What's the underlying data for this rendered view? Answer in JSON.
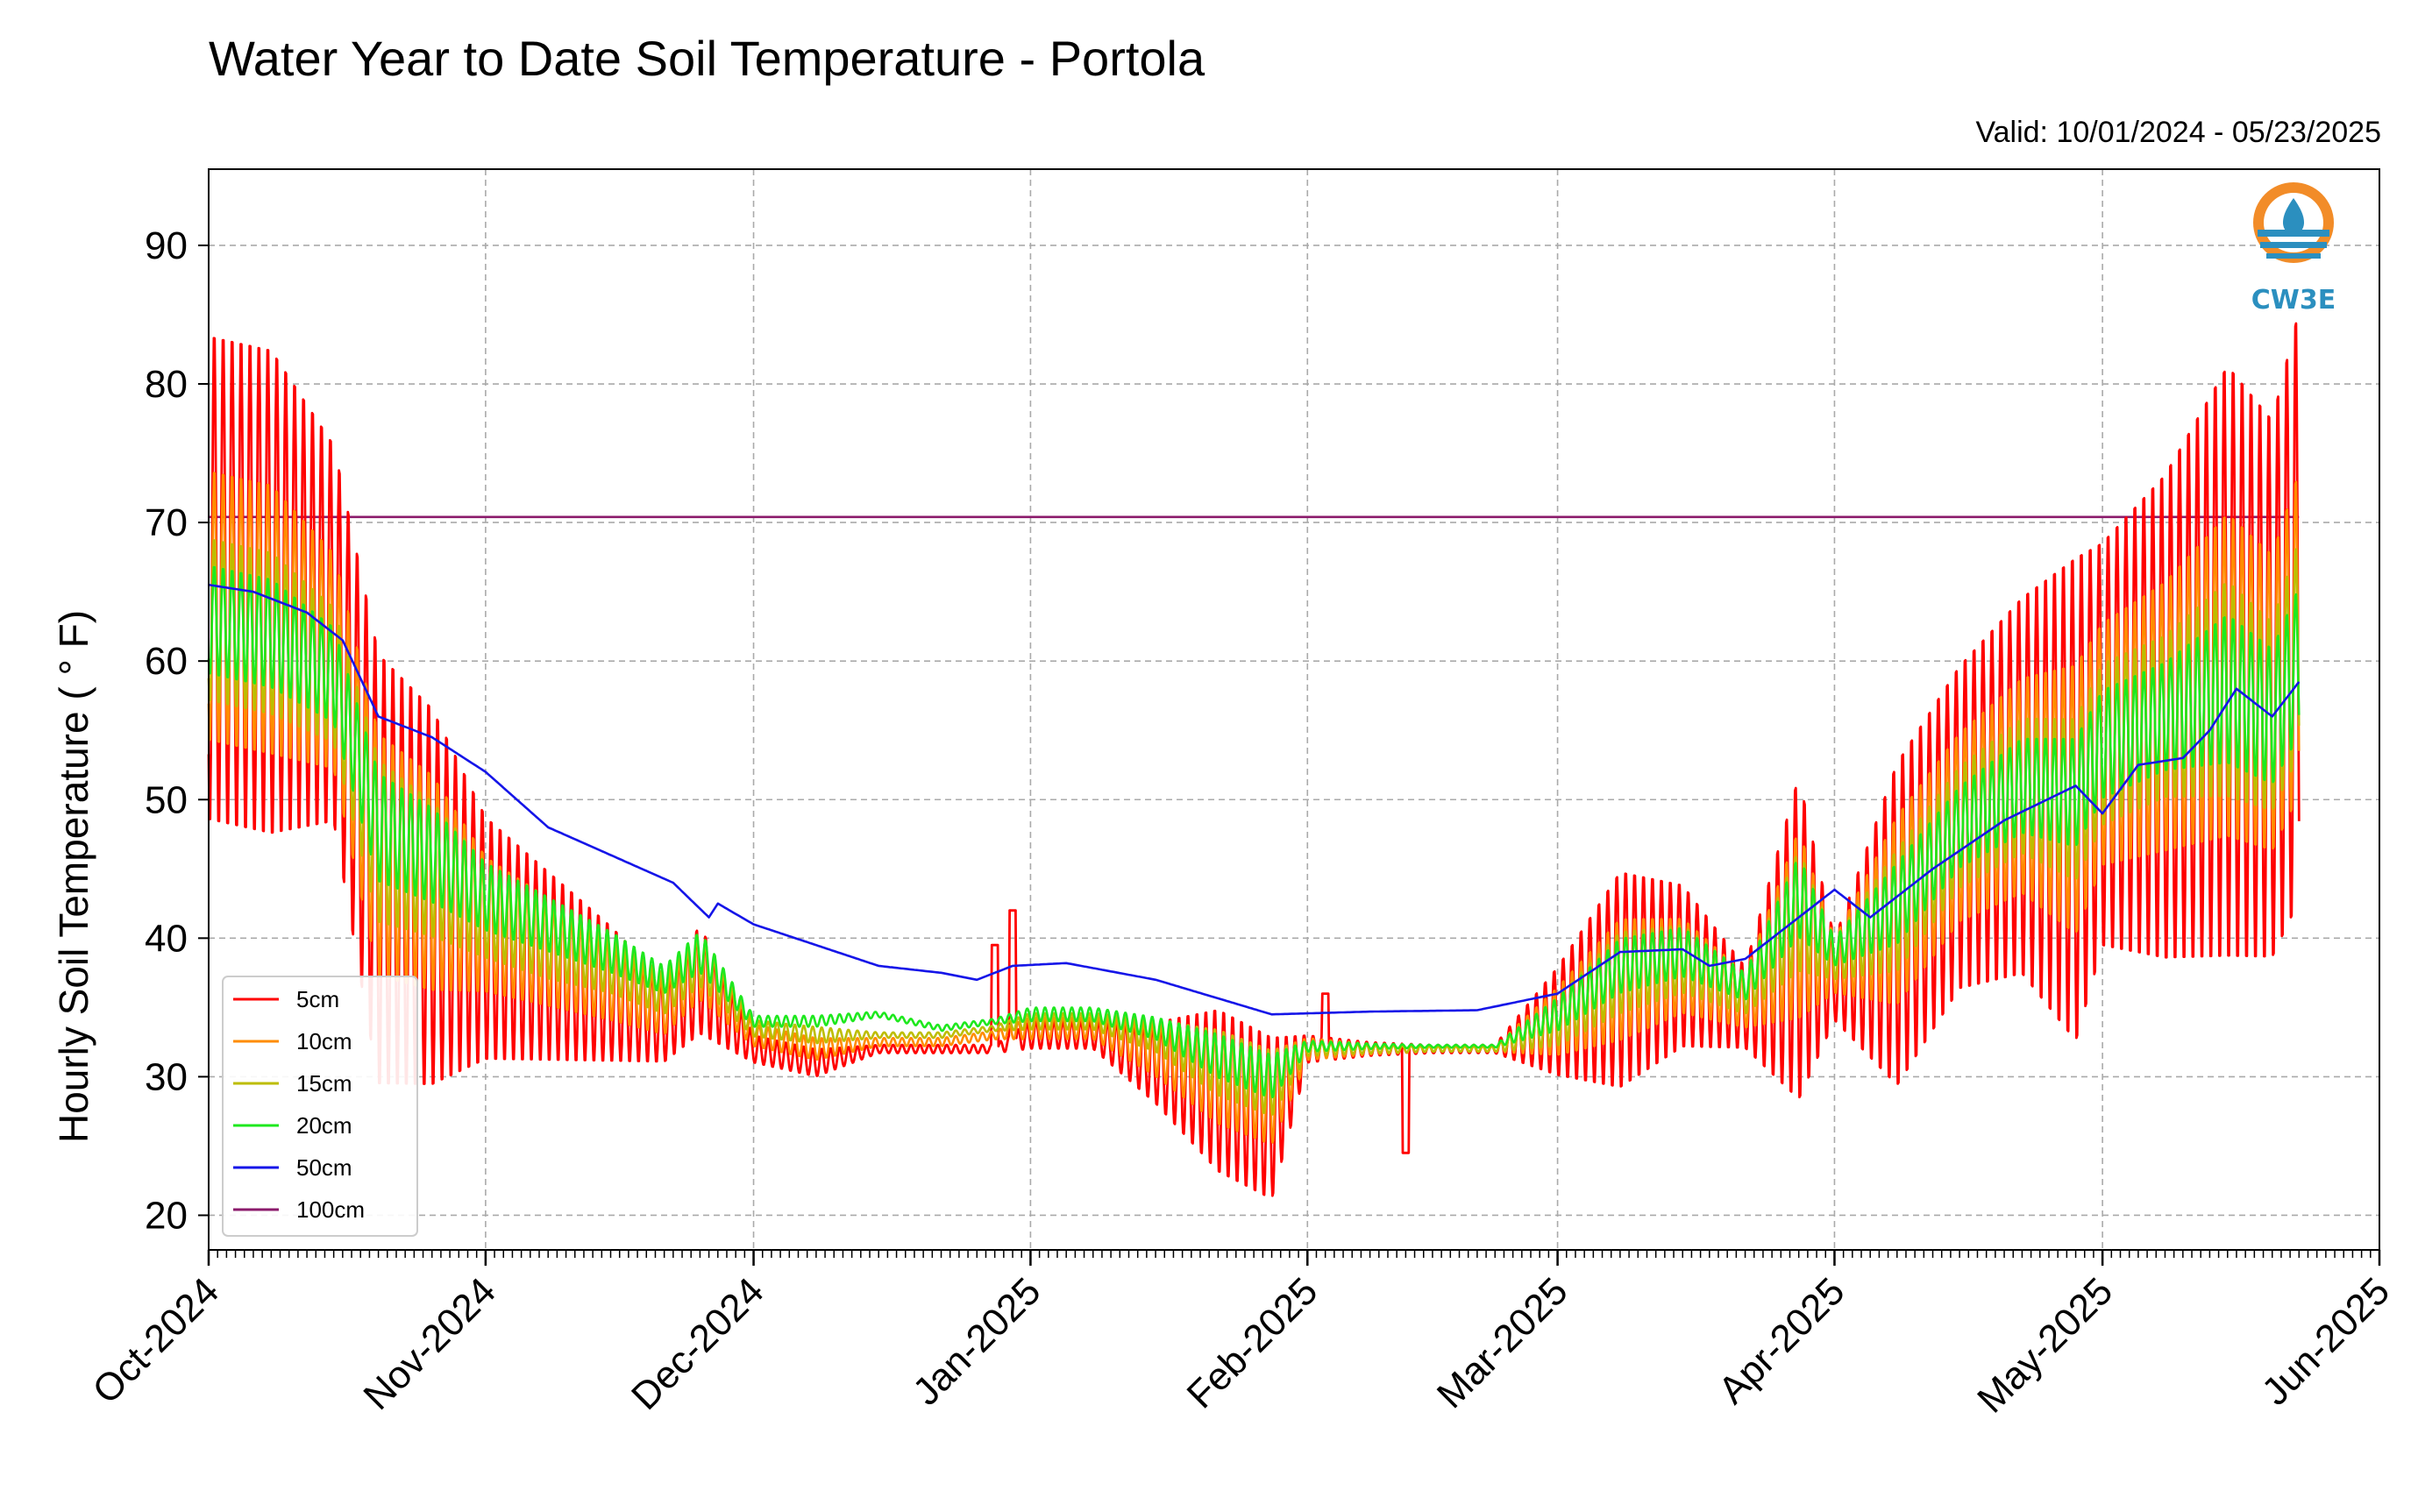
{
  "chart_data": {
    "type": "line",
    "title": "Water Year to Date Soil Temperature - Portola",
    "subtitle": "Valid: 10/01/2024 - 05/23/2025",
    "ylabel": "Hourly Soil Temperature ( ° F)",
    "xlabel": "",
    "ylim": [
      17.5,
      95.5
    ],
    "xlim_days": [
      0,
      243
    ],
    "yticks": [
      20,
      30,
      40,
      50,
      60,
      70,
      80,
      90
    ],
    "xticks": [
      {
        "label": "Oct-2024",
        "day": 0
      },
      {
        "label": "Nov-2024",
        "day": 31
      },
      {
        "label": "Dec-2024",
        "day": 61
      },
      {
        "label": "Jan-2025",
        "day": 92
      },
      {
        "label": "Feb-2025",
        "day": 123
      },
      {
        "label": "Mar-2025",
        "day": 151
      },
      {
        "label": "Apr-2025",
        "day": 182
      },
      {
        "label": "May-2025",
        "day": 212
      },
      {
        "label": "Jun-2025",
        "day": 243
      }
    ],
    "grid": true,
    "legend_position": "lower-left",
    "logo_text": "CW3E",
    "series": [
      {
        "name": "5cm",
        "color": "#ff0000",
        "x_dates": [
          "2024-10-01",
          "2024-10-08",
          "2024-10-15",
          "2024-10-20",
          "2024-10-26",
          "2024-11-01",
          "2024-11-08",
          "2024-11-15",
          "2024-11-21",
          "2024-11-25",
          "2024-12-01",
          "2024-12-08",
          "2024-12-15",
          "2024-12-22",
          "2024-12-28",
          "2025-01-01",
          "2025-01-08",
          "2025-01-15",
          "2025-01-22",
          "2025-01-28",
          "2025-02-01",
          "2025-02-08",
          "2025-02-15",
          "2025-02-22",
          "2025-03-01",
          "2025-03-08",
          "2025-03-15",
          "2025-03-22",
          "2025-03-28",
          "2025-04-01",
          "2025-04-08",
          "2025-04-15",
          "2025-04-22",
          "2025-04-28",
          "2025-05-01",
          "2025-05-08",
          "2025-05-15",
          "2025-05-20",
          "2025-05-23"
        ],
        "mean": [
          66,
          65,
          62,
          45,
          43,
          40,
          38,
          36,
          34,
          37,
          32,
          31,
          32,
          32,
          32,
          33,
          33,
          31,
          29,
          27,
          32,
          32,
          32,
          32,
          34,
          37,
          38,
          35,
          40,
          37,
          41,
          48,
          51,
          50,
          54,
          56,
          60,
          58,
          64
        ],
        "amplitude": [
          18,
          18,
          14,
          16,
          14,
          9,
          7,
          5,
          3,
          4,
          1,
          1,
          0.3,
          0.3,
          0.3,
          1,
          1,
          3,
          6,
          6,
          1,
          0.5,
          0.3,
          0.3,
          4,
          8,
          6,
          3,
          12,
          3,
          12,
          12,
          14,
          18,
          15,
          18,
          22,
          20,
          22
        ]
      },
      {
        "name": "10cm",
        "color": "#ff8c00",
        "x_dates": [
          "2024-10-01",
          "2024-10-08",
          "2024-10-15",
          "2024-10-20",
          "2024-10-26",
          "2024-11-01",
          "2024-11-08",
          "2024-11-15",
          "2024-11-21",
          "2024-11-25",
          "2024-12-01",
          "2024-12-08",
          "2024-12-15",
          "2024-12-22",
          "2024-12-28",
          "2025-01-01",
          "2025-01-08",
          "2025-01-15",
          "2025-01-22",
          "2025-01-28",
          "2025-02-01",
          "2025-02-08",
          "2025-02-15",
          "2025-02-22",
          "2025-03-01",
          "2025-03-08",
          "2025-03-15",
          "2025-03-22",
          "2025-03-28",
          "2025-04-01",
          "2025-04-08",
          "2025-04-15",
          "2025-04-22",
          "2025-04-28",
          "2025-05-01",
          "2025-05-08",
          "2025-05-15",
          "2025-05-20",
          "2025-05-23"
        ],
        "mean": [
          64,
          63,
          60,
          46,
          44,
          41,
          39,
          37,
          35,
          38,
          33,
          32,
          32.5,
          32.5,
          33,
          33.5,
          33.5,
          32,
          30,
          28.5,
          32,
          32,
          32,
          32,
          34,
          37,
          38,
          35.5,
          41,
          38,
          42,
          48,
          51,
          50,
          54,
          56,
          59,
          57,
          62
        ],
        "amplitude": [
          10,
          10,
          8,
          9,
          8,
          5,
          4,
          3,
          2,
          2.5,
          0.8,
          0.8,
          0.3,
          0.3,
          0.3,
          0.8,
          0.8,
          2,
          3.5,
          3.5,
          0.8,
          0.4,
          0.2,
          0.2,
          2.5,
          4.5,
          3.5,
          2,
          7,
          2,
          7,
          7,
          8,
          10,
          9,
          10,
          12,
          11,
          12
        ]
      },
      {
        "name": "15cm",
        "color": "#bdbd00",
        "x_dates": [
          "2024-10-01",
          "2024-10-08",
          "2024-10-15",
          "2024-10-20",
          "2024-10-26",
          "2024-11-01",
          "2024-11-08",
          "2024-11-15",
          "2024-11-21",
          "2024-11-25",
          "2024-12-01",
          "2024-12-08",
          "2024-12-15",
          "2024-12-22",
          "2024-12-28",
          "2025-01-01",
          "2025-01-08",
          "2025-01-15",
          "2025-01-22",
          "2025-01-28",
          "2025-02-01",
          "2025-02-08",
          "2025-02-15",
          "2025-02-22",
          "2025-03-01",
          "2025-03-08",
          "2025-03-15",
          "2025-03-22",
          "2025-03-28",
          "2025-04-01",
          "2025-04-08",
          "2025-04-15",
          "2025-04-22",
          "2025-04-28",
          "2025-05-01",
          "2025-05-08",
          "2025-05-15",
          "2025-05-20",
          "2025-05-23"
        ],
        "mean": [
          63,
          62,
          59,
          47,
          45,
          42,
          40,
          38,
          36,
          38.5,
          33.5,
          33,
          33,
          33,
          33.5,
          34,
          34,
          33,
          31,
          29.5,
          32,
          32,
          32,
          32,
          34,
          37.5,
          38.5,
          36,
          42,
          38.5,
          42,
          48,
          51,
          50,
          54,
          56,
          58,
          56,
          61
        ],
        "amplitude": [
          6,
          6,
          5,
          6,
          5,
          3.5,
          3,
          2,
          1.5,
          2,
          0.6,
          0.6,
          0.2,
          0.2,
          0.2,
          0.6,
          0.6,
          1.2,
          2.4,
          2.4,
          0.5,
          0.3,
          0.2,
          0.2,
          1.8,
          3,
          2.5,
          1.5,
          4.5,
          1.5,
          4.5,
          4.5,
          5,
          6,
          6,
          6,
          8,
          7,
          8
        ]
      },
      {
        "name": "20cm",
        "color": "#1ee81e",
        "x_dates": [
          "2024-10-01",
          "2024-10-08",
          "2024-10-15",
          "2024-10-20",
          "2024-10-26",
          "2024-11-01",
          "2024-11-08",
          "2024-11-15",
          "2024-11-21",
          "2024-11-25",
          "2024-12-01",
          "2024-12-08",
          "2024-12-15",
          "2024-12-22",
          "2024-12-28",
          "2025-01-01",
          "2025-01-08",
          "2025-01-15",
          "2025-01-22",
          "2025-01-28",
          "2025-02-01",
          "2025-02-08",
          "2025-02-15",
          "2025-02-22",
          "2025-03-01",
          "2025-03-08",
          "2025-03-15",
          "2025-03-22",
          "2025-03-28",
          "2025-04-01",
          "2025-04-08",
          "2025-04-15",
          "2025-04-22",
          "2025-04-28",
          "2025-05-01",
          "2025-05-08",
          "2025-05-15",
          "2025-05-20",
          "2025-05-23"
        ],
        "mean": [
          63,
          62,
          59,
          48,
          46,
          43,
          41,
          39,
          37,
          39,
          34,
          34,
          34.5,
          33.5,
          34,
          34.5,
          34.5,
          33.5,
          31.5,
          30,
          32.2,
          32.2,
          32.2,
          32.2,
          34.5,
          38,
          39,
          36.5,
          43,
          39,
          42.5,
          48,
          51,
          50.5,
          54,
          56,
          58,
          56,
          60
        ],
        "amplitude": [
          4,
          4,
          3.5,
          4,
          3.5,
          2.5,
          2,
          1.5,
          1,
          1.5,
          0.4,
          0.4,
          0.2,
          0.2,
          0.2,
          0.5,
          0.5,
          0.8,
          1.6,
          1.6,
          0.4,
          0.2,
          0.1,
          0.1,
          1.2,
          2,
          1.8,
          1,
          3,
          1,
          3,
          3,
          3.5,
          4,
          4,
          4,
          5.5,
          5,
          5.5
        ]
      },
      {
        "name": "50cm",
        "color": "#1515e8",
        "x_dates": [
          "2024-10-01",
          "2024-10-06",
          "2024-10-12",
          "2024-10-16",
          "2024-10-20",
          "2024-10-26",
          "2024-11-01",
          "2024-11-08",
          "2024-11-15",
          "2024-11-22",
          "2024-11-26",
          "2024-11-27",
          "2024-12-01",
          "2024-12-08",
          "2024-12-15",
          "2024-12-22",
          "2024-12-26",
          "2024-12-30",
          "2025-01-05",
          "2025-01-15",
          "2025-01-28",
          "2025-02-08",
          "2025-02-20",
          "2025-03-01",
          "2025-03-08",
          "2025-03-15",
          "2025-03-18",
          "2025-03-22",
          "2025-03-28",
          "2025-04-01",
          "2025-04-05",
          "2025-04-12",
          "2025-04-20",
          "2025-04-28",
          "2025-05-01",
          "2025-05-05",
          "2025-05-10",
          "2025-05-13",
          "2025-05-16",
          "2025-05-20",
          "2025-05-23"
        ],
        "values": [
          65.5,
          65,
          63.5,
          61.5,
          56,
          54.5,
          52,
          48,
          46,
          44,
          41.5,
          42.5,
          41,
          39.5,
          38,
          37.5,
          37,
          38,
          38.2,
          37,
          34.5,
          34.7,
          34.8,
          36,
          39,
          39.2,
          38,
          38.5,
          41.5,
          43.5,
          41.5,
          45,
          48.5,
          51,
          49,
          52.5,
          53,
          55,
          58,
          56,
          58.5
        ]
      },
      {
        "name": "100cm",
        "color": "#8b1a6b",
        "x_dates": [
          "2024-10-01",
          "2025-05-23"
        ],
        "values": [
          70.4,
          70.4
        ]
      }
    ],
    "notable_spikes": [
      {
        "series": "5cm",
        "date": "2024-12-28",
        "value": 39.5
      },
      {
        "series": "5cm",
        "date": "2024-12-30",
        "value": 42
      },
      {
        "series": "5cm",
        "date": "2025-02-03",
        "value": 36
      },
      {
        "series": "5cm",
        "date": "2025-02-12",
        "value": 24.5
      }
    ]
  }
}
